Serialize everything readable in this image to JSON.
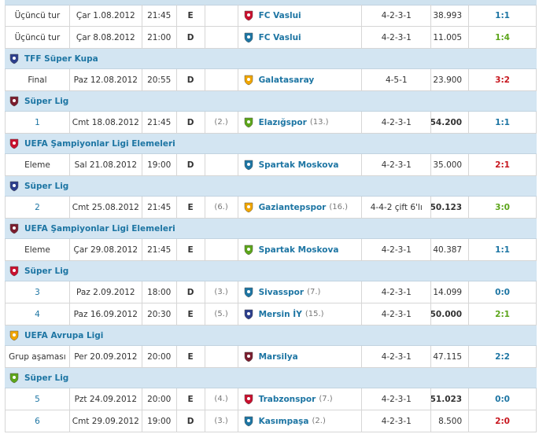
{
  "sections": [
    {
      "matches": [
        {
          "round": "Üçüncü tur",
          "date": "Çar 1.08.2012",
          "time": "21:45",
          "venue": "E",
          "opponent": "FC Vaslui",
          "formation": "4-2-3-1",
          "attendance": "38.993",
          "result": "1:1",
          "result_color": "#1d75a3"
        },
        {
          "round": "Üçüncü tur",
          "date": "Çar 8.08.2012",
          "time": "21:00",
          "venue": "D",
          "opponent": "FC Vaslui",
          "formation": "4-2-3-1",
          "attendance": "11.005",
          "result": "1:4",
          "result_color": "#5ca51a"
        }
      ]
    },
    {
      "competition": "TFF Süper Kupa",
      "matches": [
        {
          "round": "Final",
          "date": "Paz 12.08.2012",
          "time": "20:55",
          "venue": "D",
          "opponent": "Galatasaray",
          "formation": "4-5-1",
          "attendance": "23.900",
          "result": "3:2",
          "result_color": "#c7161e"
        }
      ]
    },
    {
      "competition": "Süper Lig",
      "matches": [
        {
          "round": "1",
          "date": "Cmt 18.08.2012",
          "time": "21:45",
          "venue": "D",
          "own_rank": "(2.)",
          "opponent": "Elazığspor",
          "opponent_rank": "(13.)",
          "formation": "4-2-3-1",
          "attendance": "54.200",
          "attendance_bold": true,
          "result": "1:1",
          "result_color": "#1d75a3"
        }
      ]
    },
    {
      "competition": "UEFA Şampiyonlar Ligi Elemeleri",
      "matches": [
        {
          "round": "Eleme",
          "date": "Sal 21.08.2012",
          "time": "19:00",
          "venue": "D",
          "opponent": "Spartak Moskova",
          "formation": "4-2-3-1",
          "attendance": "35.000",
          "result": "2:1",
          "result_color": "#c7161e"
        }
      ]
    },
    {
      "competition": "Süper Lig",
      "matches": [
        {
          "round": "2",
          "date": "Cmt 25.08.2012",
          "time": "21:45",
          "venue": "E",
          "own_rank": "(6.)",
          "opponent": "Gaziantepspor",
          "opponent_rank": "(16.)",
          "formation": "4-4-2 çift 6'lı",
          "attendance": "50.123",
          "attendance_bold": true,
          "result": "3:0",
          "result_color": "#5ca51a"
        }
      ]
    },
    {
      "competition": "UEFA Şampiyonlar Ligi Elemeleri",
      "matches": [
        {
          "round": "Eleme",
          "date": "Çar 29.08.2012",
          "time": "21:45",
          "venue": "E",
          "opponent": "Spartak Moskova",
          "formation": "4-2-3-1",
          "attendance": "40.387",
          "result": "1:1",
          "result_color": "#1d75a3"
        }
      ]
    },
    {
      "competition": "Süper Lig",
      "matches": [
        {
          "round": "3",
          "date": "Paz 2.09.2012",
          "time": "18:00",
          "venue": "D",
          "own_rank": "(3.)",
          "opponent": "Sivasspor",
          "opponent_rank": "(7.)",
          "formation": "4-2-3-1",
          "attendance": "14.099",
          "result": "0:0",
          "result_color": "#1d75a3"
        },
        {
          "round": "4",
          "date": "Paz 16.09.2012",
          "time": "20:30",
          "venue": "E",
          "own_rank": "(5.)",
          "opponent": "Mersin İY",
          "opponent_rank": "(15.)",
          "formation": "4-2-3-1",
          "attendance": "50.000",
          "attendance_bold": true,
          "result": "2:1",
          "result_color": "#5ca51a"
        }
      ]
    },
    {
      "competition": "UEFA Avrupa Ligi",
      "matches": [
        {
          "round": "Grup aşaması",
          "date": "Per 20.09.2012",
          "time": "20:00",
          "venue": "E",
          "opponent": "Marsilya",
          "formation": "4-2-3-1",
          "attendance": "47.115",
          "result": "2:2",
          "result_color": "#1d75a3"
        }
      ]
    },
    {
      "competition": "Süper Lig",
      "matches": [
        {
          "round": "5",
          "date": "Pzt 24.09.2012",
          "time": "20:00",
          "venue": "E",
          "own_rank": "(4.)",
          "opponent": "Trabzonspor",
          "opponent_rank": "(7.)",
          "formation": "4-2-3-1",
          "attendance": "51.023",
          "attendance_bold": true,
          "result": "0:0",
          "result_color": "#1d75a3"
        },
        {
          "round": "6",
          "date": "Cmt 29.09.2012",
          "time": "19:00",
          "venue": "D",
          "own_rank": "(3.)",
          "opponent": "Kasımpaşa",
          "opponent_rank": "(2.)",
          "formation": "4-2-3-1",
          "attendance": "8.500",
          "result": "2:0",
          "result_color": "#c7161e"
        }
      ]
    }
  ]
}
